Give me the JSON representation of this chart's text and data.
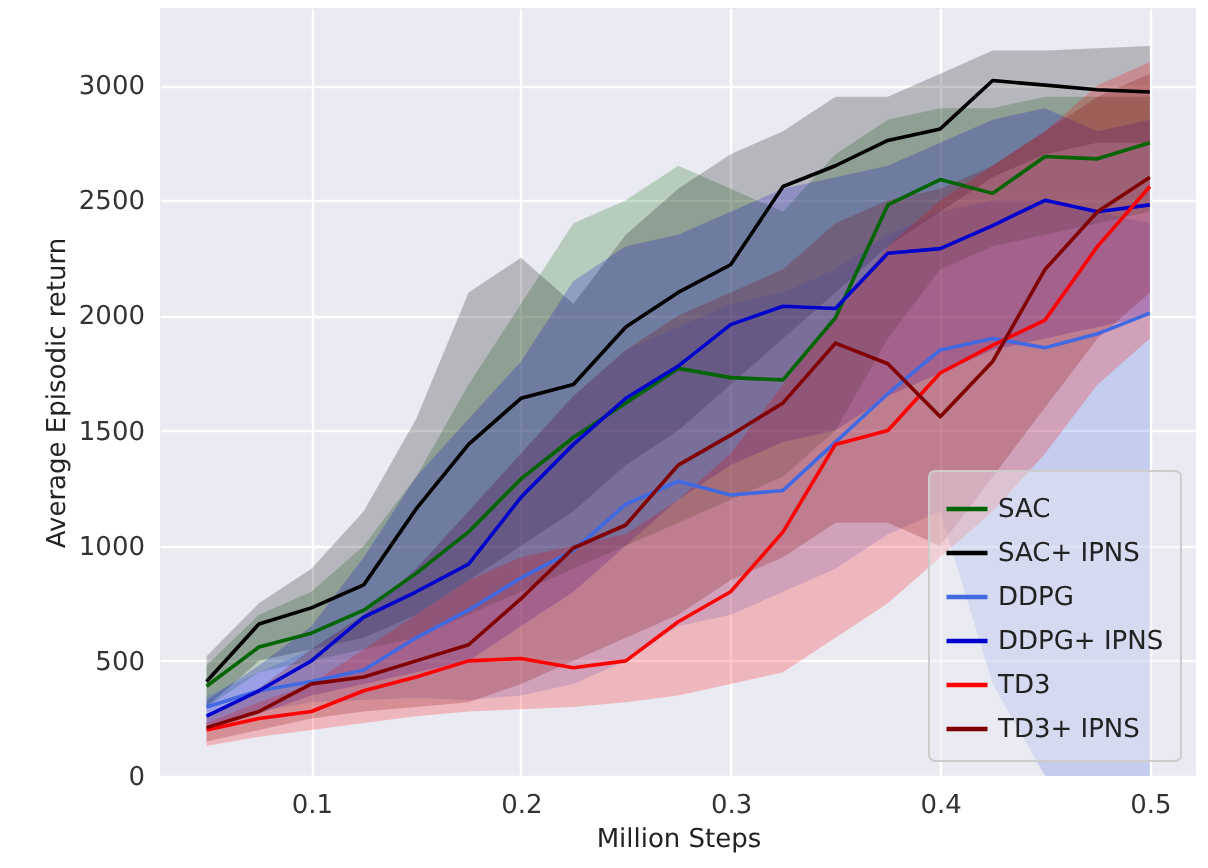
{
  "chart_data": {
    "type": "line",
    "xlabel": "Million Steps",
    "ylabel": "Average Episodic return",
    "x": [
      0.05,
      0.075,
      0.1,
      0.125,
      0.15,
      0.175,
      0.2,
      0.225,
      0.25,
      0.275,
      0.3,
      0.325,
      0.35,
      0.375,
      0.4,
      0.425,
      0.45,
      0.475,
      0.5
    ],
    "xlim": [
      0.0278,
      0.522
    ],
    "xticks": [
      0.1,
      0.2,
      0.3,
      0.4,
      0.5
    ],
    "ylim": [
      0,
      3335
    ],
    "yticks": [
      0,
      500,
      1000,
      1500,
      2000,
      2500,
      3000
    ],
    "grid": true,
    "legend": "bottom right",
    "series": [
      {
        "name": "SAC",
        "color": "#006400",
        "values": [
          390,
          560,
          620,
          720,
          880,
          1060,
          1290,
          1470,
          1620,
          1770,
          1730,
          1720,
          1990,
          2480,
          2590,
          2530,
          2690,
          2680,
          2750
        ],
        "lower": [
          300,
          450,
          500,
          550,
          600,
          700,
          800,
          900,
          1000,
          1100,
          1200,
          1300,
          1500,
          1900,
          2200,
          2300,
          2350,
          2400,
          2450
        ],
        "upper": [
          480,
          700,
          800,
          1000,
          1300,
          1700,
          2050,
          2400,
          2500,
          2650,
          2550,
          2450,
          2700,
          2850,
          2900,
          2900,
          2950,
          2950,
          2950
        ]
      },
      {
        "name": "SAC+ IPNS",
        "color": "#000000",
        "values": [
          410,
          660,
          730,
          830,
          1160,
          1440,
          1640,
          1700,
          1950,
          2100,
          2220,
          2560,
          2650,
          2760,
          2810,
          3020,
          3000,
          2980,
          2970
        ],
        "lower": [
          300,
          500,
          550,
          600,
          700,
          850,
          1000,
          1150,
          1350,
          1500,
          1700,
          1900,
          2100,
          2300,
          2450,
          2600,
          2700,
          2750,
          2750
        ],
        "upper": [
          520,
          750,
          900,
          1150,
          1550,
          2100,
          2250,
          2050,
          2350,
          2550,
          2700,
          2800,
          2950,
          2950,
          3050,
          3150,
          3150,
          3160,
          3170
        ]
      },
      {
        "name": "DDPG",
        "color": "#4169e1",
        "values": [
          300,
          370,
          410,
          460,
          600,
          720,
          860,
          980,
          1180,
          1280,
          1220,
          1240,
          1450,
          1660,
          1850,
          1900,
          1860,
          1920,
          2010
        ],
        "lower": [
          220,
          280,
          320,
          330,
          340,
          330,
          350,
          400,
          500,
          650,
          700,
          800,
          900,
          1050,
          1150,
          400,
          0,
          0,
          0
        ],
        "upper": [
          350,
          450,
          550,
          700,
          900,
          1150,
          1400,
          1650,
          1850,
          1950,
          2050,
          2100,
          2200,
          2350,
          2450,
          2500,
          2500,
          2450,
          2400
        ]
      },
      {
        "name": "DDPG+ IPNS",
        "color": "#0000cd",
        "values": [
          260,
          370,
          500,
          690,
          800,
          920,
          1210,
          1440,
          1640,
          1780,
          1960,
          2040,
          2030,
          2270,
          2290,
          2390,
          2500,
          2450,
          2480
        ],
        "lower": [
          200,
          270,
          350,
          400,
          450,
          500,
          650,
          800,
          1000,
          1200,
          1350,
          1450,
          1500,
          1650,
          1750,
          1850,
          1900,
          1950,
          2000
        ],
        "upper": [
          330,
          480,
          650,
          950,
          1300,
          1550,
          1800,
          2150,
          2300,
          2350,
          2450,
          2550,
          2600,
          2650,
          2750,
          2850,
          2900,
          2800,
          2850
        ]
      },
      {
        "name": "TD3",
        "color": "#ff0000",
        "values": [
          200,
          250,
          280,
          370,
          430,
          500,
          510,
          470,
          500,
          670,
          800,
          1060,
          1440,
          1500,
          1750,
          1870,
          1980,
          2300,
          2560
        ],
        "lower": [
          130,
          170,
          200,
          230,
          260,
          280,
          290,
          300,
          320,
          350,
          400,
          450,
          600,
          750,
          950,
          1150,
          1400,
          1700,
          1900
        ],
        "upper": [
          230,
          320,
          400,
          550,
          700,
          850,
          950,
          1000,
          1050,
          1200,
          1400,
          1700,
          2000,
          2300,
          2500,
          2650,
          2800,
          3000,
          3100
        ]
      },
      {
        "name": "TD3+ IPNS",
        "color": "#800000",
        "values": [
          210,
          280,
          400,
          430,
          500,
          570,
          770,
          990,
          1090,
          1350,
          1480,
          1620,
          1880,
          1790,
          1560,
          1800,
          2200,
          2450,
          2600
        ],
        "lower": [
          150,
          200,
          250,
          280,
          300,
          320,
          400,
          500,
          600,
          700,
          850,
          950,
          1100,
          1100,
          1000,
          1300,
          1600,
          1900,
          2100
        ],
        "upper": [
          260,
          380,
          550,
          700,
          900,
          1150,
          1400,
          1650,
          1850,
          2000,
          2100,
          2200,
          2400,
          2500,
          2550,
          2650,
          2800,
          2950,
          3050
        ]
      }
    ]
  }
}
